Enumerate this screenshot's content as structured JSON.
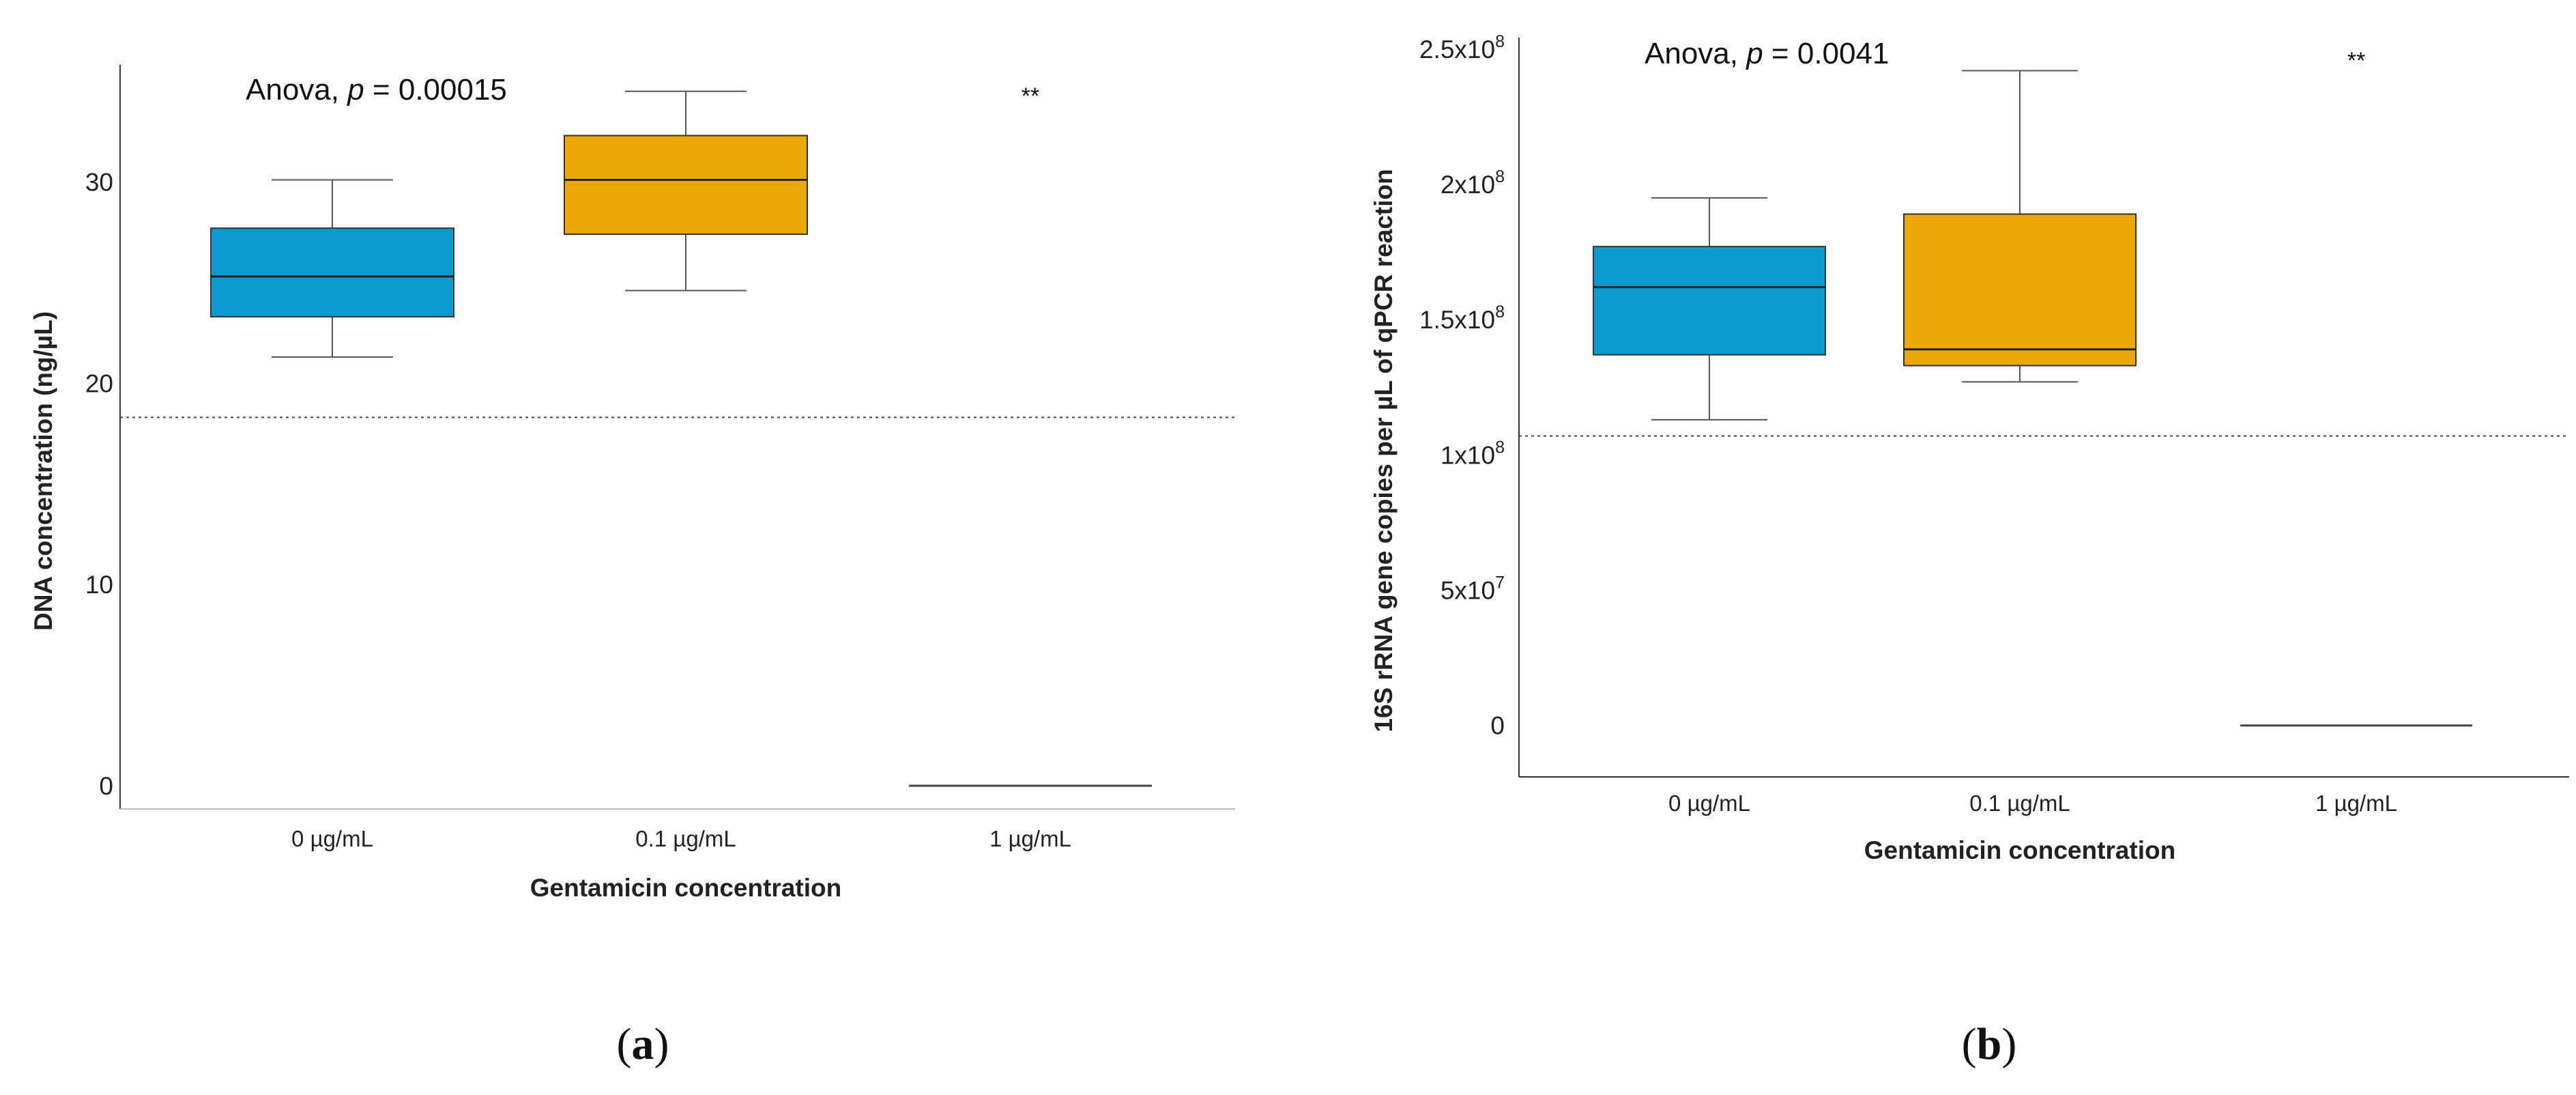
{
  "chart_data": [
    {
      "type": "box",
      "panel_label": {
        "open": "(",
        "letter": "a",
        "close": ")"
      },
      "annotation": {
        "prefix": "Anova, ",
        "p_symbol": "p",
        "suffix": " = 0.00015"
      },
      "significance": "**",
      "xlabel": "Gentamicin concentration",
      "ylabel": "DNA concentration (ng/µL)",
      "ylim": [
        -2,
        37
      ],
      "yticks": [
        0,
        10,
        20,
        30
      ],
      "ytick_labels": [
        "0",
        "10",
        "20",
        "30"
      ],
      "reference_line": 18.3,
      "categories": [
        "0 µg/mL",
        "0.1 µg/mL",
        "1 µg/mL"
      ],
      "boxes": [
        {
          "category": "0 µg/mL",
          "min": 21.3,
          "q1": 23.3,
          "median": 25.3,
          "q3": 27.7,
          "max": 30.1,
          "color": "#0b9bd0"
        },
        {
          "category": "0.1 µg/mL",
          "min": 24.6,
          "q1": 27.4,
          "median": 30.1,
          "q3": 32.3,
          "max": 34.5,
          "color": "#eaa707"
        },
        {
          "category": "1 µg/mL",
          "min": 0,
          "q1": 0,
          "median": 0,
          "q3": 0,
          "max": 0,
          "color": "#444444"
        }
      ]
    },
    {
      "type": "box",
      "panel_label": {
        "open": "(",
        "letter": "b",
        "close": ")"
      },
      "annotation": {
        "prefix": "Anova, ",
        "p_symbol": "p",
        "suffix": " = 0.0041"
      },
      "significance": "**",
      "xlabel": "Gentamicin concentration",
      "ylabel": "16S rRNA gene copies per µL of qPCR reaction",
      "ylim": [
        -0.2,
        2.55
      ],
      "y_unit": "x10^8",
      "yticks": [
        0,
        0.5,
        1.0,
        1.5,
        2.0,
        2.5
      ],
      "ytick_labels": [
        {
          "base": "0",
          "exp": ""
        },
        {
          "base": "5x10",
          "exp": "7"
        },
        {
          "base": "1x10",
          "exp": "8"
        },
        {
          "base": "1.5x10",
          "exp": "8"
        },
        {
          "base": "2x10",
          "exp": "8"
        },
        {
          "base": "2.5x10",
          "exp": "8"
        }
      ],
      "reference_line": 1.07,
      "categories": [
        "0 µg/mL",
        "0.1 µg/mL",
        "1 µg/mL"
      ],
      "boxes": [
        {
          "category": "0 µg/mL",
          "min": 1.13,
          "q1": 1.37,
          "median": 1.62,
          "q3": 1.77,
          "max": 1.95,
          "color": "#0b9bd0"
        },
        {
          "category": "0.1 µg/mL",
          "min": 1.27,
          "q1": 1.33,
          "median": 1.39,
          "q3": 1.89,
          "max": 2.42,
          "color": "#eaa707"
        },
        {
          "category": "1 µg/mL",
          "min": 0,
          "q1": 0,
          "median": 0,
          "q3": 0,
          "max": 0,
          "color": "#444444"
        }
      ]
    }
  ]
}
